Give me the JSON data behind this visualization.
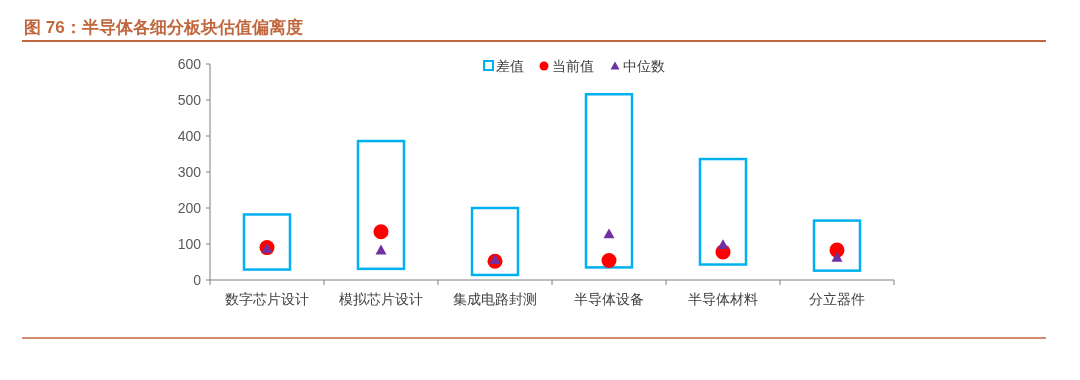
{
  "chart_data": {
    "type": "bar",
    "title": "图 76：半导体各细分板块估值偏离度",
    "categories": [
      "数字芯片设计",
      "模拟芯片设计",
      "集成电路封测",
      "半导体设备",
      "半导体材料",
      "分立器件"
    ],
    "series": [
      {
        "name": "差值",
        "color": "#00b0f0",
        "base": [
          29,
          31,
          14,
          35,
          43,
          26
        ],
        "values": [
          153,
          355,
          186,
          481,
          293,
          139
        ]
      },
      {
        "name": "当前值",
        "type": "scatter",
        "marker": "circle",
        "color": "#ff0000",
        "x": [
          "数字芯片设计",
          "模拟芯片设计",
          "集成电路封测",
          "半导体设备",
          "半导体材料",
          "分立器件"
        ],
        "values": [
          90,
          134,
          52,
          54,
          78,
          83
        ]
      },
      {
        "name": "中位数",
        "type": "scatter",
        "marker": "triangle",
        "color": "#7030a0",
        "x": [
          "数字芯片设计",
          "模拟芯片设计",
          "集成电路封测",
          "半导体设备",
          "半导体材料",
          "分立器件"
        ],
        "values": [
          87,
          83,
          57,
          128,
          98,
          63
        ]
      }
    ],
    "ylim": [
      0,
      600
    ],
    "yticks": [
      0,
      100,
      200,
      300,
      400,
      500,
      600
    ],
    "legend": "top",
    "grid": false
  }
}
